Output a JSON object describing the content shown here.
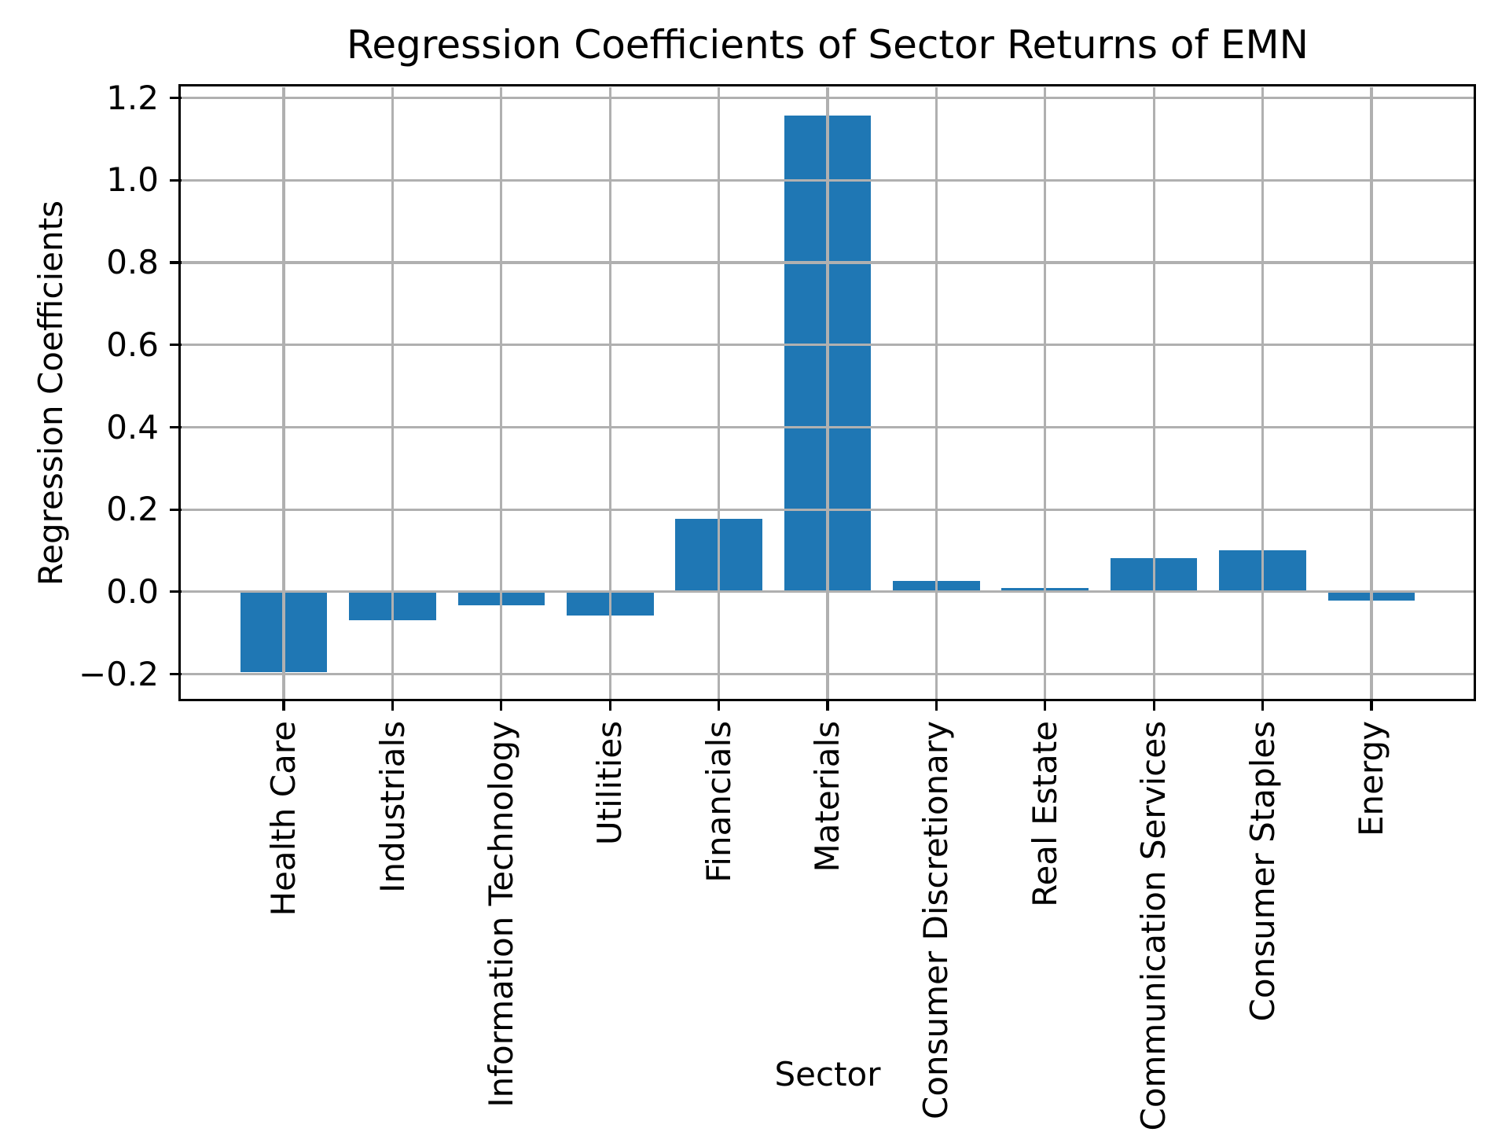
{
  "chart_data": {
    "type": "bar",
    "title": "Regression Coefficients of Sector Returns of EMN",
    "xlabel": "Sector",
    "ylabel": "Regression Coefficients",
    "categories": [
      "Health Care",
      "Industrials",
      "Information Technology",
      "Utilities",
      "Financials",
      "Materials",
      "Consumer Discretionary",
      "Real Estate",
      "Communication Services",
      "Consumer Staples",
      "Energy"
    ],
    "values": [
      -0.195,
      -0.07,
      -0.033,
      -0.058,
      0.177,
      1.157,
      0.027,
      0.009,
      0.082,
      0.101,
      -0.021
    ],
    "yticks": [
      -0.2,
      0.0,
      0.2,
      0.4,
      0.6,
      0.8,
      1.0,
      1.2
    ],
    "ytick_labels": [
      "−0.2",
      "0.0",
      "0.2",
      "0.4",
      "0.6",
      "0.8",
      "1.0",
      "1.2"
    ],
    "ylim": [
      -0.26,
      1.226
    ],
    "xlim": [
      -0.94,
      10.94
    ],
    "bar_width": 0.8,
    "grid": true,
    "legend": "none",
    "bar_color": "#1f77b4",
    "grid_color": "#b0b0b0",
    "spine_color": "#000000"
  }
}
